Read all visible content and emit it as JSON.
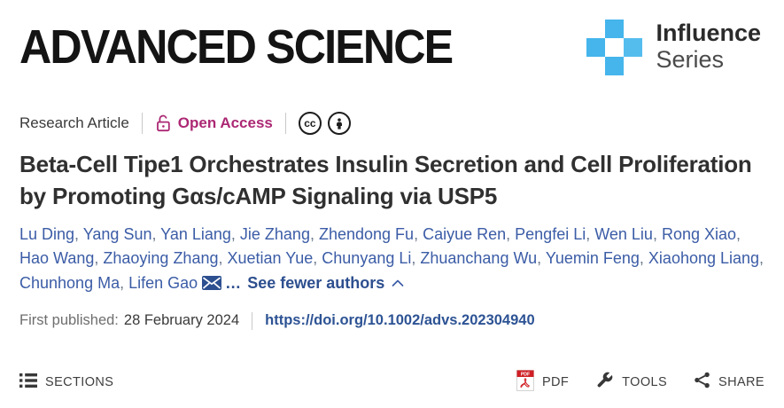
{
  "header": {
    "journal_title": "ADVANCED SCIENCE",
    "influence_line1": "Influence",
    "influence_line2": "Series"
  },
  "meta": {
    "article_type": "Research Article",
    "open_access_label": "Open Access",
    "cc_glyph": "cc"
  },
  "title": "Beta-Cell Tipe1 Orchestrates Insulin Secretion and Cell Proliferation by Promoting Gαs/cAMP Signaling via USP5",
  "authors": {
    "names": [
      "Lu Ding",
      "Yang Sun",
      "Yan Liang",
      "Jie Zhang",
      "Zhendong Fu",
      "Caiyue Ren",
      "Pengfei Li",
      "Wen Liu",
      "Rong Xiao",
      "Hao Wang",
      "Zhaoying Zhang",
      "Xuetian Yue",
      "Chunyang Li",
      "Zhuanchang Wu",
      "Yuemin Feng",
      "Xiaohong Liang",
      "Chunhong Ma",
      "Lifen Gao"
    ],
    "ellipsis": "…",
    "see_fewer_label": "See fewer authors"
  },
  "published": {
    "label": "First published:",
    "date": "28 February 2024",
    "doi": "https://doi.org/10.1002/advs.202304940"
  },
  "footer": {
    "sections_label": "SECTIONS",
    "pdf_label": "PDF",
    "pdf_icon_text": "PDF",
    "tools_label": "TOOLS",
    "share_label": "SHARE"
  },
  "colors": {
    "influence_blue": "#45b5ec",
    "open_access_pink": "#ac2874",
    "author_link_blue": "#3b5ca6",
    "doi_link_blue": "#2d5394",
    "pdf_red": "#cf1f25",
    "footer_gray": "#3f3f3f"
  }
}
